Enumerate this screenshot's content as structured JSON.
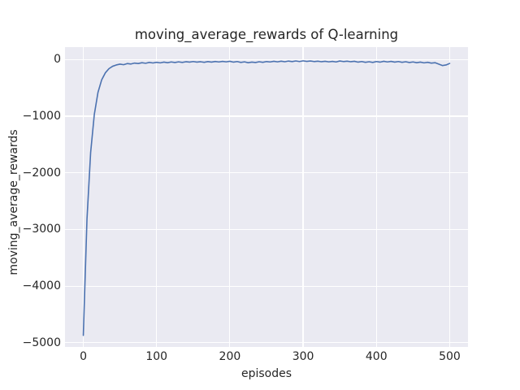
{
  "figure": {
    "title": "moving_average_rewards of Q-learning",
    "xlabel": "episodes",
    "ylabel": "moving_average_rewards"
  },
  "axes": {
    "x_tick_labels": [
      "0",
      "100",
      "200",
      "300",
      "400",
      "500"
    ],
    "x_tick_values": [
      0,
      100,
      200,
      300,
      400,
      500
    ],
    "y_tick_labels": [
      "0",
      "−1000",
      "−2000",
      "−3000",
      "−4000",
      "−5000"
    ],
    "y_tick_values": [
      0,
      -1000,
      -2000,
      -3000,
      -4000,
      -5000
    ],
    "xlim": [
      -25,
      525
    ],
    "ylim": [
      -5074,
      220
    ]
  },
  "style": {
    "figure_bg": "#ffffff",
    "plot_bg": "#eaeaf2",
    "grid_color": "#ffffff",
    "line_color": "#4c72b0",
    "text_color": "#262626"
  },
  "chart_data": {
    "type": "line",
    "title": "moving_average_rewards of Q-learning",
    "xlabel": "episodes",
    "ylabel": "moving_average_rewards",
    "xlim": [
      -25,
      525
    ],
    "ylim": [
      -5074,
      220
    ],
    "grid": true,
    "legend": false,
    "series": [
      {
        "name": "moving_average_rewards",
        "color": "#4c72b0",
        "x": [
          0,
          5,
          10,
          15,
          20,
          25,
          30,
          35,
          40,
          45,
          50,
          55,
          60,
          65,
          70,
          75,
          80,
          85,
          90,
          95,
          100,
          105,
          110,
          115,
          120,
          125,
          130,
          135,
          140,
          145,
          150,
          155,
          160,
          165,
          170,
          175,
          180,
          185,
          190,
          195,
          200,
          205,
          210,
          215,
          220,
          225,
          230,
          235,
          240,
          245,
          250,
          255,
          260,
          265,
          270,
          275,
          280,
          285,
          290,
          295,
          300,
          305,
          310,
          315,
          320,
          325,
          330,
          335,
          340,
          345,
          350,
          355,
          360,
          365,
          370,
          375,
          380,
          385,
          390,
          395,
          400,
          405,
          410,
          415,
          420,
          425,
          430,
          435,
          440,
          445,
          450,
          455,
          460,
          465,
          470,
          475,
          480,
          485,
          490,
          495,
          500
        ],
        "y": [
          -4870,
          -2820,
          -1640,
          -970,
          -580,
          -360,
          -235,
          -160,
          -118,
          -95,
          -80,
          -90,
          -70,
          -78,
          -62,
          -70,
          -55,
          -65,
          -50,
          -60,
          -48,
          -58,
          -45,
          -55,
          -42,
          -52,
          -40,
          -50,
          -38,
          -45,
          -35,
          -45,
          -38,
          -48,
          -36,
          -44,
          -34,
          -42,
          -32,
          -40,
          -30,
          -45,
          -35,
          -50,
          -40,
          -55,
          -45,
          -52,
          -38,
          -48,
          -35,
          -42,
          -30,
          -40,
          -28,
          -38,
          -26,
          -36,
          -24,
          -35,
          -22,
          -32,
          -25,
          -35,
          -28,
          -38,
          -30,
          -40,
          -32,
          -42,
          -25,
          -35,
          -28,
          -38,
          -30,
          -45,
          -35,
          -48,
          -38,
          -50,
          -35,
          -45,
          -30,
          -42,
          -32,
          -45,
          -35,
          -48,
          -38,
          -52,
          -42,
          -55,
          -45,
          -58,
          -48,
          -62,
          -55,
          -80,
          -105,
          -95,
          -68
        ]
      }
    ]
  }
}
